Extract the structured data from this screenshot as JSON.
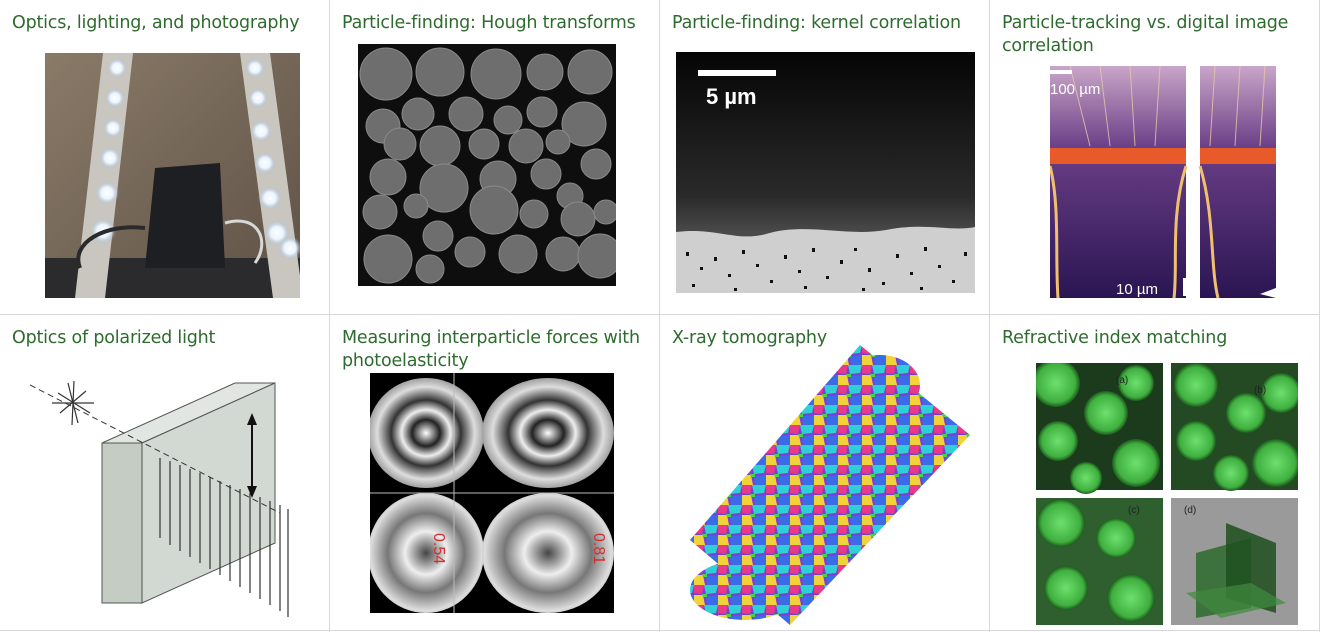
{
  "panels": [
    {
      "title": "Optics, lighting, and photography"
    },
    {
      "title": "Particle-finding:  Hough transforms"
    },
    {
      "title": "Particle-finding: kernel correlation"
    },
    {
      "title": "Particle-tracking vs. digital image correlation"
    },
    {
      "title": "Optics of polarized light"
    },
    {
      "title": "Measuring interparticle forces with photoelasticity"
    },
    {
      "title": "X-ray tomography"
    },
    {
      "title": "Refractive index matching"
    }
  ],
  "labels": {
    "scale_5um": "5 µm",
    "scale_100um": "100 µm",
    "scale_10um": "10 µm",
    "photo_val_left": "0.54",
    "photo_val_right": "0.81",
    "rim_a": "(a)",
    "rim_b": "(b)",
    "rim_c": "(c)",
    "rim_d": "(d)"
  },
  "colors": {
    "title": "#2e6b2e",
    "divider": "#d7d7d7"
  }
}
